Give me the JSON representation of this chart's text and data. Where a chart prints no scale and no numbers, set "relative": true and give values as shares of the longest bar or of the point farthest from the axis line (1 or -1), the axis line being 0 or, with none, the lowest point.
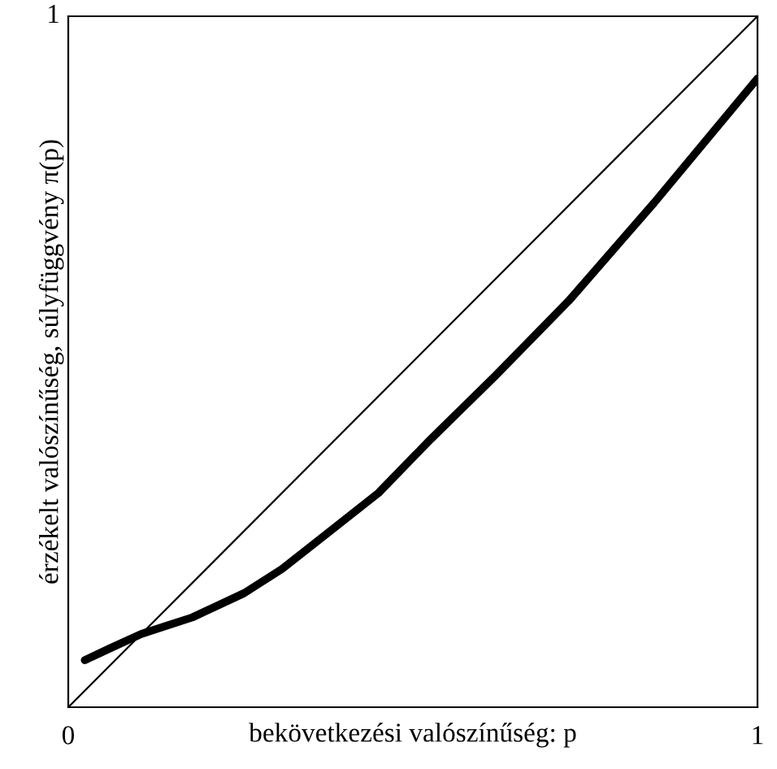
{
  "chart_data": {
    "type": "line",
    "xlabel": "bekövetkezési valószínűség: p",
    "ylabel": "érzékelt valószínűség, súlyfüggvény π(p)",
    "xlim": [
      0,
      1
    ],
    "xticks": [
      0,
      1
    ],
    "relative": true,
    "annotations": [
      "1"
    ],
    "grid": false,
    "legend": false,
    "marker": "none",
    "line_style": "solid",
    "series": [
      {
        "color": "#000000",
        "x": [
          0,
          1
        ],
        "values": [
          0,
          1
        ]
      },
      {
        "color": "#000000",
        "x": [
          0.024,
          0.06,
          0.106,
          0.18,
          0.255,
          0.31,
          0.37,
          0.45,
          0.526,
          0.62,
          0.726,
          0.85,
          1
        ],
        "values": [
          0.068,
          0.085,
          0.106,
          0.13,
          0.165,
          0.2,
          0.247,
          0.31,
          0.388,
          0.48,
          0.588,
          0.73,
          0.91
        ]
      }
    ]
  }
}
